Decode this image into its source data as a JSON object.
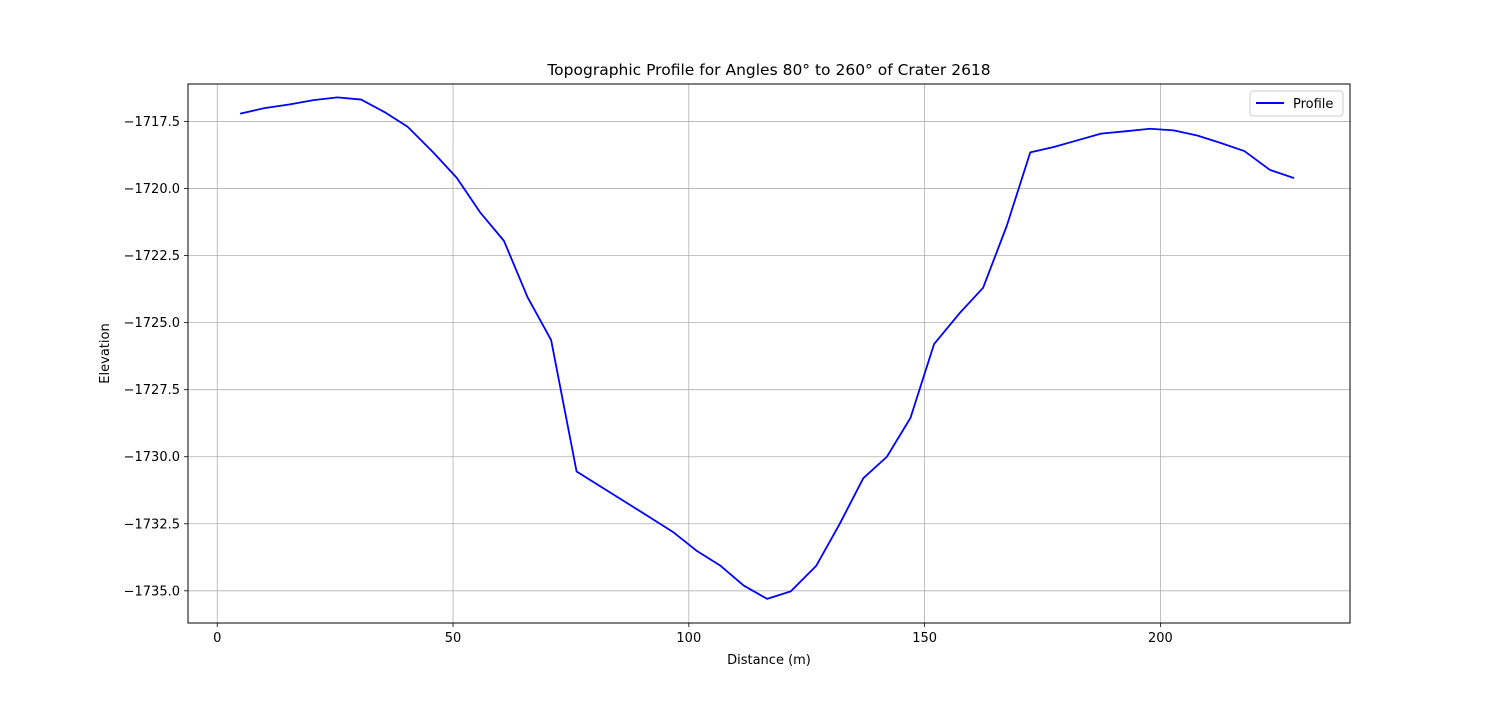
{
  "chart_data": {
    "type": "line",
    "title": "Topographic Profile for Angles 80° to 260° of Crater 2618",
    "xlabel": "Distance (m)",
    "ylabel": "Elevation",
    "xlim": [
      -6.2,
      240.2
    ],
    "ylim": [
      -1736.2,
      -1716.1
    ],
    "xticks": [
      0,
      50,
      100,
      150,
      200
    ],
    "xtick_labels": [
      "0",
      "50",
      "100",
      "150",
      "200"
    ],
    "yticks": [
      -1717.5,
      -1720.0,
      -1722.5,
      -1725.0,
      -1727.5,
      -1730.0,
      -1732.5,
      -1735.0
    ],
    "ytick_labels": [
      "−1717.5",
      "−1720.0",
      "−1722.5",
      "−1725.0",
      "−1727.5",
      "−1730.0",
      "−1732.5",
      "−1735.0"
    ],
    "grid": true,
    "legend_position": "upper right",
    "series": [
      {
        "name": "Profile",
        "color": "#0000ff",
        "x": [
          5.0,
          10.0,
          15.4,
          20.4,
          25.5,
          30.5,
          35.5,
          40.4,
          45.8,
          50.8,
          55.8,
          60.8,
          65.8,
          70.8,
          76.2,
          81.2,
          86.2,
          91.2,
          96.6,
          101.6,
          106.6,
          111.6,
          116.6,
          121.6,
          127.0,
          132.0,
          137.0,
          142.0,
          147.0,
          152.0,
          157.4,
          162.4,
          167.4,
          172.4,
          177.4,
          182.4,
          187.4,
          192.8,
          197.8,
          202.8,
          207.8,
          212.8,
          217.8,
          223.2,
          228.2
        ],
        "values": [
          -1717.2,
          -1717.0,
          -1716.86,
          -1716.7,
          -1716.6,
          -1716.68,
          -1717.15,
          -1717.7,
          -1718.65,
          -1719.6,
          -1720.9,
          -1721.95,
          -1724.05,
          -1725.65,
          -1730.55,
          -1731.1,
          -1731.65,
          -1732.2,
          -1732.8,
          -1733.5,
          -1734.05,
          -1734.8,
          -1735.3,
          -1735.02,
          -1734.07,
          -1732.5,
          -1730.8,
          -1730.0,
          -1728.55,
          -1725.8,
          -1724.65,
          -1723.7,
          -1721.4,
          -1718.65,
          -1718.45,
          -1718.2,
          -1717.95,
          -1717.86,
          -1717.77,
          -1717.83,
          -1718.02,
          -1718.3,
          -1718.6,
          -1719.3,
          -1719.6
        ]
      }
    ]
  }
}
